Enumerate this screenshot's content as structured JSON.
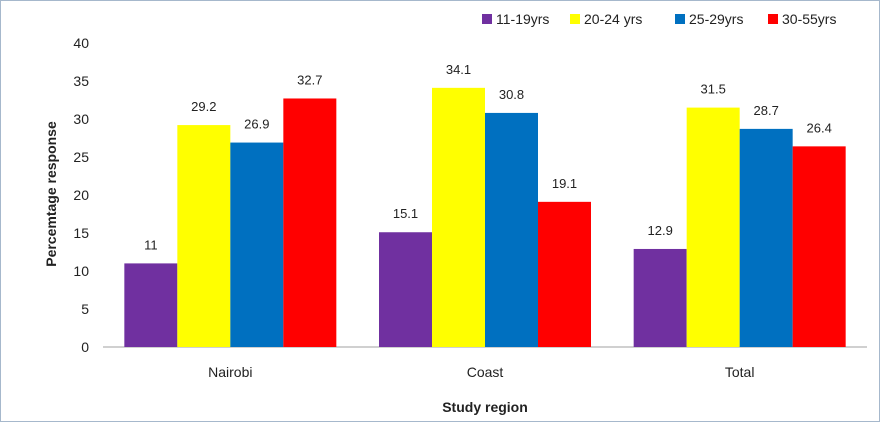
{
  "chart_data": {
    "type": "bar",
    "xlabel": "Study region",
    "ylabel": "Percemtage response",
    "ylim": [
      0,
      40
    ],
    "yticks": [
      0,
      5,
      10,
      15,
      20,
      25,
      30,
      35,
      40
    ],
    "categories": [
      "Nairobi",
      "Coast",
      "Total"
    ],
    "series": [
      {
        "name": "11-19yrs",
        "color": "#7030a0",
        "values": [
          11,
          15.1,
          12.9
        ]
      },
      {
        "name": "20-24 yrs",
        "color": "#ffff00",
        "values": [
          29.2,
          34.1,
          31.5
        ]
      },
      {
        "name": "25-29yrs",
        "color": "#0070c0",
        "values": [
          26.9,
          30.8,
          28.7
        ]
      },
      {
        "name": "30-55yrs",
        "color": "#ff0000",
        "values": [
          32.7,
          19.1,
          26.4
        ]
      }
    ],
    "data_labels": [
      [
        "11",
        "15.1",
        "12.9"
      ],
      [
        "29.2",
        "34.1",
        "31.5"
      ],
      [
        "26.9",
        "30.8",
        "28.7"
      ],
      [
        "32.7",
        "19.1",
        "26.4"
      ]
    ],
    "legend": "top-right",
    "grid": false
  }
}
